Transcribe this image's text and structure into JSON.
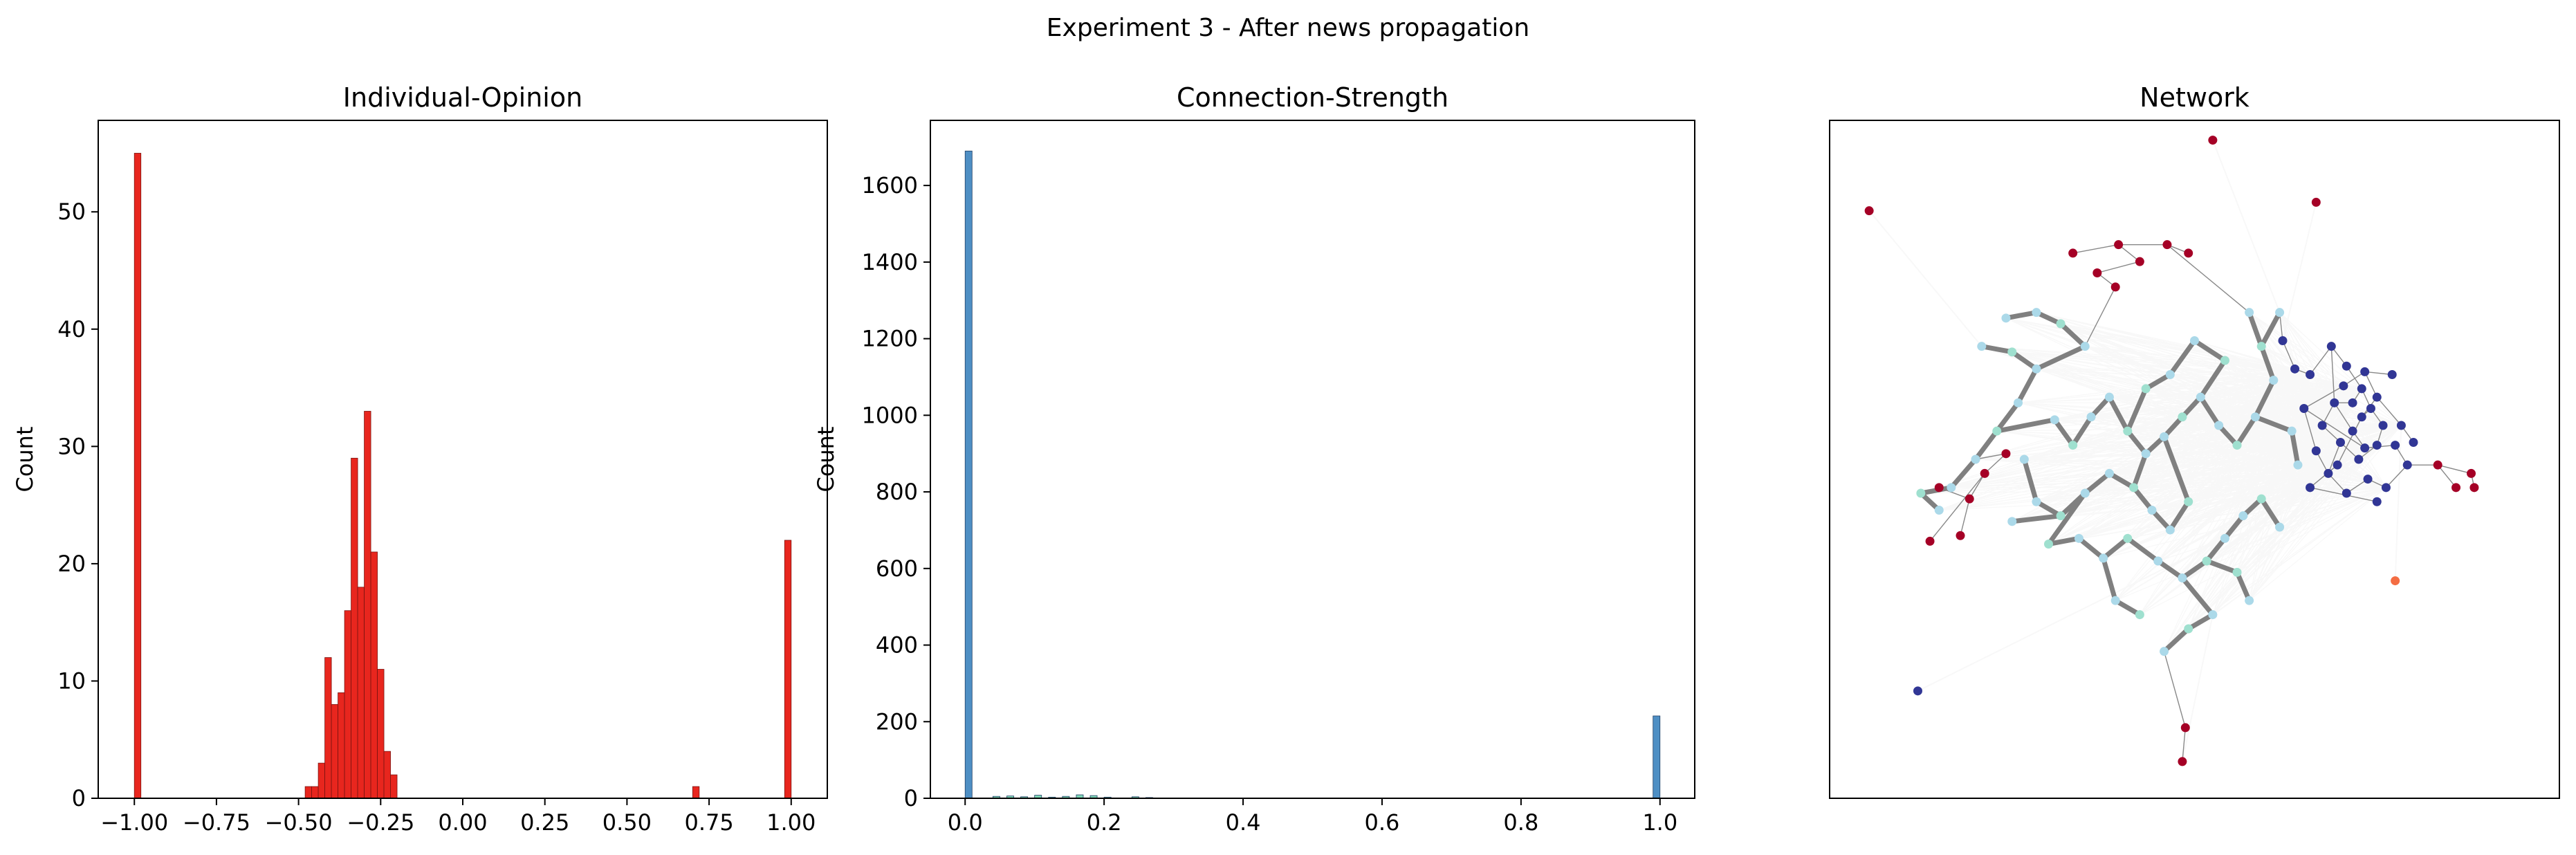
{
  "figure": {
    "suptitle": "Experiment 3 - After news propagation"
  },
  "chart_data": [
    {
      "type": "bar",
      "title": "Individual-Opinion",
      "xlabel": "",
      "ylabel": "Count",
      "xlim": [
        -1.11,
        1.11
      ],
      "ylim": [
        0,
        57.8
      ],
      "xticks": [
        "−1.00",
        "−0.75",
        "−0.50",
        "−0.25",
        "0.00",
        "0.25",
        "0.50",
        "0.75",
        "1.00"
      ],
      "xtick_values": [
        -1.0,
        -0.75,
        -0.5,
        -0.25,
        0.0,
        0.25,
        0.5,
        0.75,
        1.0
      ],
      "yticks": [
        "0",
        "10",
        "20",
        "30",
        "40",
        "50"
      ],
      "ytick_values": [
        0,
        10,
        20,
        30,
        40,
        50
      ],
      "bin_width": 0.02,
      "bin_starts": [
        -1.0,
        -0.48,
        -0.46,
        -0.44,
        -0.42,
        -0.4,
        -0.38,
        -0.36,
        -0.34,
        -0.32,
        -0.3,
        -0.28,
        -0.26,
        -0.24,
        -0.22,
        0.7,
        0.98
      ],
      "values": [
        55,
        1,
        1,
        3,
        12,
        8,
        9,
        16,
        29,
        18,
        33,
        21,
        11,
        4,
        2,
        1,
        22
      ],
      "color": "#e8261e",
      "edge_color": "#7a1410",
      "grid": false
    },
    {
      "type": "bar",
      "title": "Connection-Strength",
      "xlabel": "",
      "ylabel": "Count",
      "xlim": [
        -0.05,
        1.05
      ],
      "ylim": [
        0,
        1770
      ],
      "xticks": [
        "0.0",
        "0.2",
        "0.4",
        "0.6",
        "0.8",
        "1.0"
      ],
      "xtick_values": [
        0.0,
        0.2,
        0.4,
        0.6,
        0.8,
        1.0
      ],
      "yticks": [
        "0",
        "200",
        "400",
        "600",
        "800",
        "1000",
        "1200",
        "1400",
        "1600"
      ],
      "ytick_values": [
        0,
        200,
        400,
        600,
        800,
        1000,
        1200,
        1400,
        1600
      ],
      "bin_width": 0.01,
      "bin_starts": [
        0.0,
        0.04,
        0.06,
        0.08,
        0.1,
        0.12,
        0.14,
        0.16,
        0.18,
        0.2,
        0.24,
        0.26,
        0.99
      ],
      "values": [
        1690,
        5,
        6,
        4,
        8,
        3,
        5,
        9,
        7,
        3,
        4,
        2,
        215
      ],
      "color": "#4e8fc4",
      "small_bar_color": "#7fd6b6",
      "grid": false
    },
    {
      "type": "scatter",
      "title": "Network",
      "xlabel": "",
      "ylabel": "",
      "xlim": [
        -1.2,
        1.2
      ],
      "ylim": [
        -1.2,
        1.2
      ],
      "axes_ticks": false,
      "colors": {
        "negative": "#a50026",
        "positive": "#313695",
        "neutral": "#abd9e9",
        "neutral_alt": "#9fe0cf",
        "outlier": "#f46d43",
        "strong_edge": "#808080",
        "thin_edge": "#888888",
        "weak_edge": "#ececec"
      },
      "nodes": [
        [
          0.06,
          1.13,
          1
        ],
        [
          0.4,
          0.91,
          1
        ],
        [
          -1.07,
          0.88,
          1
        ],
        [
          -0.4,
          0.73,
          1
        ],
        [
          -0.25,
          0.76,
          1
        ],
        [
          -0.09,
          0.76,
          1
        ],
        [
          -0.02,
          0.73,
          1
        ],
        [
          -0.18,
          0.7,
          1
        ],
        [
          -0.32,
          0.66,
          1
        ],
        [
          -0.26,
          0.61,
          1
        ],
        [
          -0.77,
          -0.27,
          1
        ],
        [
          -0.74,
          -0.14,
          1
        ],
        [
          -0.69,
          -0.05,
          1
        ],
        [
          -0.62,
          0.02,
          1
        ],
        [
          -0.84,
          -0.1,
          1
        ],
        [
          -0.87,
          -0.29,
          1
        ],
        [
          0.8,
          -0.02,
          1
        ],
        [
          0.91,
          -0.05,
          1
        ],
        [
          0.92,
          -0.1,
          1
        ],
        [
          0.86,
          -0.1,
          1
        ],
        [
          -0.04,
          -1.07,
          1
        ],
        [
          -0.03,
          -0.95,
          1
        ],
        [
          0.66,
          -0.43,
          3
        ],
        [
          -0.91,
          -0.82,
          2
        ],
        [
          0.38,
          0.3,
          2
        ],
        [
          0.45,
          0.4,
          2
        ],
        [
          0.5,
          0.33,
          2
        ],
        [
          0.55,
          0.25,
          2
        ],
        [
          0.58,
          0.18,
          2
        ],
        [
          0.62,
          0.12,
          2
        ],
        [
          0.6,
          0.05,
          2
        ],
        [
          0.54,
          0.0,
          2
        ],
        [
          0.48,
          0.06,
          2
        ],
        [
          0.42,
          0.12,
          2
        ],
        [
          0.46,
          0.2,
          2
        ],
        [
          0.52,
          0.1,
          2
        ],
        [
          0.56,
          0.04,
          2
        ],
        [
          0.66,
          0.05,
          2
        ],
        [
          0.7,
          -0.02,
          2
        ],
        [
          0.63,
          -0.1,
          2
        ],
        [
          0.57,
          -0.07,
          2
        ],
        [
          0.5,
          -0.12,
          2
        ],
        [
          0.44,
          -0.05,
          2
        ],
        [
          0.4,
          0.03,
          2
        ],
        [
          0.36,
          0.18,
          2
        ],
        [
          0.49,
          0.26,
          2
        ],
        [
          0.56,
          0.31,
          2
        ],
        [
          0.6,
          0.22,
          2
        ],
        [
          0.68,
          0.12,
          2
        ],
        [
          0.72,
          0.06,
          2
        ],
        [
          0.65,
          0.3,
          2
        ],
        [
          0.33,
          0.32,
          2
        ],
        [
          0.29,
          0.42,
          2
        ],
        [
          0.55,
          0.15,
          2
        ],
        [
          0.47,
          -0.02,
          2
        ],
        [
          0.38,
          -0.1,
          2
        ],
        [
          0.6,
          -0.15,
          2
        ],
        [
          0.52,
          0.2,
          2
        ],
        [
          -0.8,
          -0.1,
          0
        ],
        [
          -0.72,
          0.0,
          0
        ],
        [
          -0.65,
          0.1,
          0
        ],
        [
          -0.58,
          0.2,
          0
        ],
        [
          -0.52,
          0.32,
          0
        ],
        [
          -0.6,
          0.38,
          0
        ],
        [
          -0.7,
          0.4,
          0
        ],
        [
          -0.46,
          0.14,
          0
        ],
        [
          -0.4,
          0.05,
          0
        ],
        [
          -0.34,
          0.15,
          0
        ],
        [
          -0.28,
          0.22,
          0
        ],
        [
          -0.22,
          0.1,
          0
        ],
        [
          -0.16,
          0.02,
          0
        ],
        [
          -0.1,
          0.08,
          0
        ],
        [
          -0.04,
          0.15,
          0
        ],
        [
          0.02,
          0.22,
          0
        ],
        [
          0.08,
          0.12,
          0
        ],
        [
          0.14,
          0.05,
          0
        ],
        [
          0.2,
          0.15,
          0
        ],
        [
          0.26,
          0.28,
          0
        ],
        [
          0.22,
          0.4,
          0
        ],
        [
          0.18,
          0.52,
          0
        ],
        [
          0.28,
          0.52,
          0
        ],
        [
          -0.2,
          -0.1,
          0
        ],
        [
          -0.14,
          -0.18,
          0
        ],
        [
          -0.08,
          -0.25,
          0
        ],
        [
          -0.02,
          -0.15,
          0
        ],
        [
          -0.28,
          -0.05,
          0
        ],
        [
          -0.36,
          -0.12,
          0
        ],
        [
          -0.44,
          -0.2,
          0
        ],
        [
          -0.52,
          -0.15,
          0
        ],
        [
          -0.6,
          -0.22,
          0
        ],
        [
          -0.48,
          -0.3,
          0
        ],
        [
          -0.38,
          -0.28,
          0
        ],
        [
          -0.3,
          -0.35,
          0
        ],
        [
          -0.22,
          -0.28,
          0
        ],
        [
          -0.12,
          -0.36,
          0
        ],
        [
          -0.04,
          -0.42,
          0
        ],
        [
          0.04,
          -0.36,
          0
        ],
        [
          0.1,
          -0.28,
          0
        ],
        [
          0.16,
          -0.2,
          0
        ],
        [
          0.22,
          -0.14,
          0
        ],
        [
          0.28,
          -0.24,
          0
        ],
        [
          0.06,
          -0.55,
          0
        ],
        [
          -0.02,
          -0.6,
          0
        ],
        [
          -0.1,
          -0.68,
          0
        ],
        [
          -0.36,
          0.4,
          0
        ],
        [
          -0.44,
          0.48,
          0
        ],
        [
          -0.52,
          0.52,
          0
        ],
        [
          -0.62,
          0.5,
          0
        ],
        [
          0.1,
          0.35,
          0
        ],
        [
          0.0,
          0.42,
          0
        ],
        [
          -0.08,
          0.3,
          0
        ],
        [
          -0.16,
          0.25,
          0
        ],
        [
          0.32,
          0.1,
          0
        ],
        [
          0.34,
          -0.02,
          0
        ],
        [
          -0.9,
          -0.12,
          0
        ],
        [
          -0.84,
          -0.18,
          0
        ],
        [
          -0.56,
          0.0,
          0
        ],
        [
          0.14,
          -0.4,
          0
        ],
        [
          0.18,
          -0.5,
          0
        ],
        [
          -0.26,
          -0.5,
          0
        ],
        [
          -0.18,
          -0.55,
          0
        ]
      ],
      "strong_edges": [
        [
          58,
          59
        ],
        [
          59,
          60
        ],
        [
          60,
          61
        ],
        [
          61,
          62
        ],
        [
          62,
          63
        ],
        [
          63,
          64
        ],
        [
          60,
          65
        ],
        [
          65,
          66
        ],
        [
          66,
          67
        ],
        [
          67,
          68
        ],
        [
          68,
          69
        ],
        [
          69,
          70
        ],
        [
          70,
          71
        ],
        [
          71,
          72
        ],
        [
          72,
          73
        ],
        [
          73,
          74
        ],
        [
          74,
          75
        ],
        [
          75,
          76
        ],
        [
          76,
          77
        ],
        [
          77,
          78
        ],
        [
          78,
          79
        ],
        [
          78,
          80
        ],
        [
          70,
          81
        ],
        [
          81,
          82
        ],
        [
          82,
          83
        ],
        [
          83,
          84
        ],
        [
          81,
          85
        ],
        [
          85,
          86
        ],
        [
          86,
          87
        ],
        [
          87,
          88
        ],
        [
          87,
          89
        ],
        [
          86,
          90
        ],
        [
          90,
          91
        ],
        [
          91,
          92
        ],
        [
          92,
          93
        ],
        [
          93,
          94
        ],
        [
          94,
          95
        ],
        [
          95,
          96
        ],
        [
          96,
          97
        ],
        [
          97,
          98
        ],
        [
          98,
          99
        ],
        [
          99,
          100
        ],
        [
          95,
          101
        ],
        [
          101,
          102
        ],
        [
          102,
          103
        ],
        [
          62,
          104
        ],
        [
          104,
          105
        ],
        [
          105,
          106
        ],
        [
          106,
          107
        ],
        [
          73,
          108
        ],
        [
          108,
          109
        ],
        [
          109,
          110
        ],
        [
          110,
          111
        ],
        [
          76,
          112
        ],
        [
          112,
          113
        ],
        [
          58,
          114
        ],
        [
          114,
          115
        ],
        [
          88,
          116
        ],
        [
          96,
          117
        ],
        [
          117,
          118
        ],
        [
          92,
          119
        ],
        [
          119,
          120
        ],
        [
          84,
          71
        ],
        [
          69,
          111
        ]
      ],
      "thin_edges": [
        [
          3,
          4
        ],
        [
          4,
          5
        ],
        [
          5,
          6
        ],
        [
          4,
          7
        ],
        [
          7,
          8
        ],
        [
          8,
          9
        ],
        [
          9,
          104
        ],
        [
          5,
          79
        ],
        [
          10,
          11
        ],
        [
          11,
          12
        ],
        [
          12,
          13
        ],
        [
          14,
          11
        ],
        [
          15,
          12
        ],
        [
          13,
          59
        ],
        [
          16,
          17
        ],
        [
          17,
          18
        ],
        [
          16,
          19
        ],
        [
          16,
          38
        ],
        [
          20,
          21
        ],
        [
          21,
          103
        ],
        [
          24,
          25
        ],
        [
          25,
          26
        ],
        [
          26,
          27
        ],
        [
          27,
          28
        ],
        [
          28,
          29
        ],
        [
          29,
          30
        ],
        [
          30,
          31
        ],
        [
          31,
          32
        ],
        [
          32,
          33
        ],
        [
          33,
          34
        ],
        [
          34,
          35
        ],
        [
          35,
          36
        ],
        [
          36,
          37
        ],
        [
          37,
          38
        ],
        [
          38,
          39
        ],
        [
          39,
          40
        ],
        [
          40,
          41
        ],
        [
          41,
          42
        ],
        [
          42,
          43
        ],
        [
          43,
          44
        ],
        [
          44,
          45
        ],
        [
          45,
          46
        ],
        [
          46,
          47
        ],
        [
          47,
          48
        ],
        [
          48,
          49
        ],
        [
          46,
          50
        ],
        [
          24,
          51
        ],
        [
          51,
          52
        ],
        [
          52,
          80
        ],
        [
          28,
          53
        ],
        [
          53,
          54
        ],
        [
          54,
          55
        ],
        [
          55,
          56
        ],
        [
          34,
          57
        ],
        [
          57,
          27
        ],
        [
          25,
          34
        ],
        [
          32,
          42
        ],
        [
          44,
          36
        ],
        [
          47,
          53
        ]
      ]
    }
  ]
}
